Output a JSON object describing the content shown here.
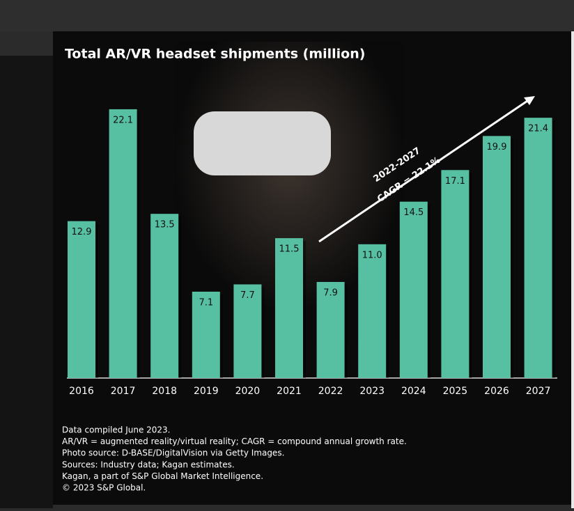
{
  "chart_data": {
    "type": "bar",
    "title": "Total AR/VR headset shipments (million)",
    "categories": [
      "2016",
      "2017",
      "2018",
      "2019",
      "2020",
      "2021",
      "2022",
      "2023",
      "2024",
      "2025",
      "2026",
      "2027"
    ],
    "values": [
      12.9,
      22.1,
      13.5,
      7.1,
      7.7,
      11.5,
      7.9,
      11.0,
      14.5,
      17.1,
      19.9,
      21.4
    ],
    "value_labels": [
      "12.9",
      "22.1",
      "13.5",
      "7.1",
      "7.7",
      "11.5",
      "7.9",
      "11.0",
      "14.5",
      "17.1",
      "19.9",
      "21.4"
    ],
    "color": "#57bfa2",
    "annotation": [
      "2022-2027",
      "CAGR = 22.1%"
    ],
    "notes": [
      "Data compiled June 2023.",
      "AR/VR = augmented reality/virtual reality; CAGR = compound annual growth rate.",
      "Photo source: D-BASE/DigitalVision via Getty Images.",
      "Sources: Industry data; Kagan estimates.",
      "Kagan, a part of S&P Global Market Intelligence.",
      "© 2023 S&P Global."
    ]
  }
}
